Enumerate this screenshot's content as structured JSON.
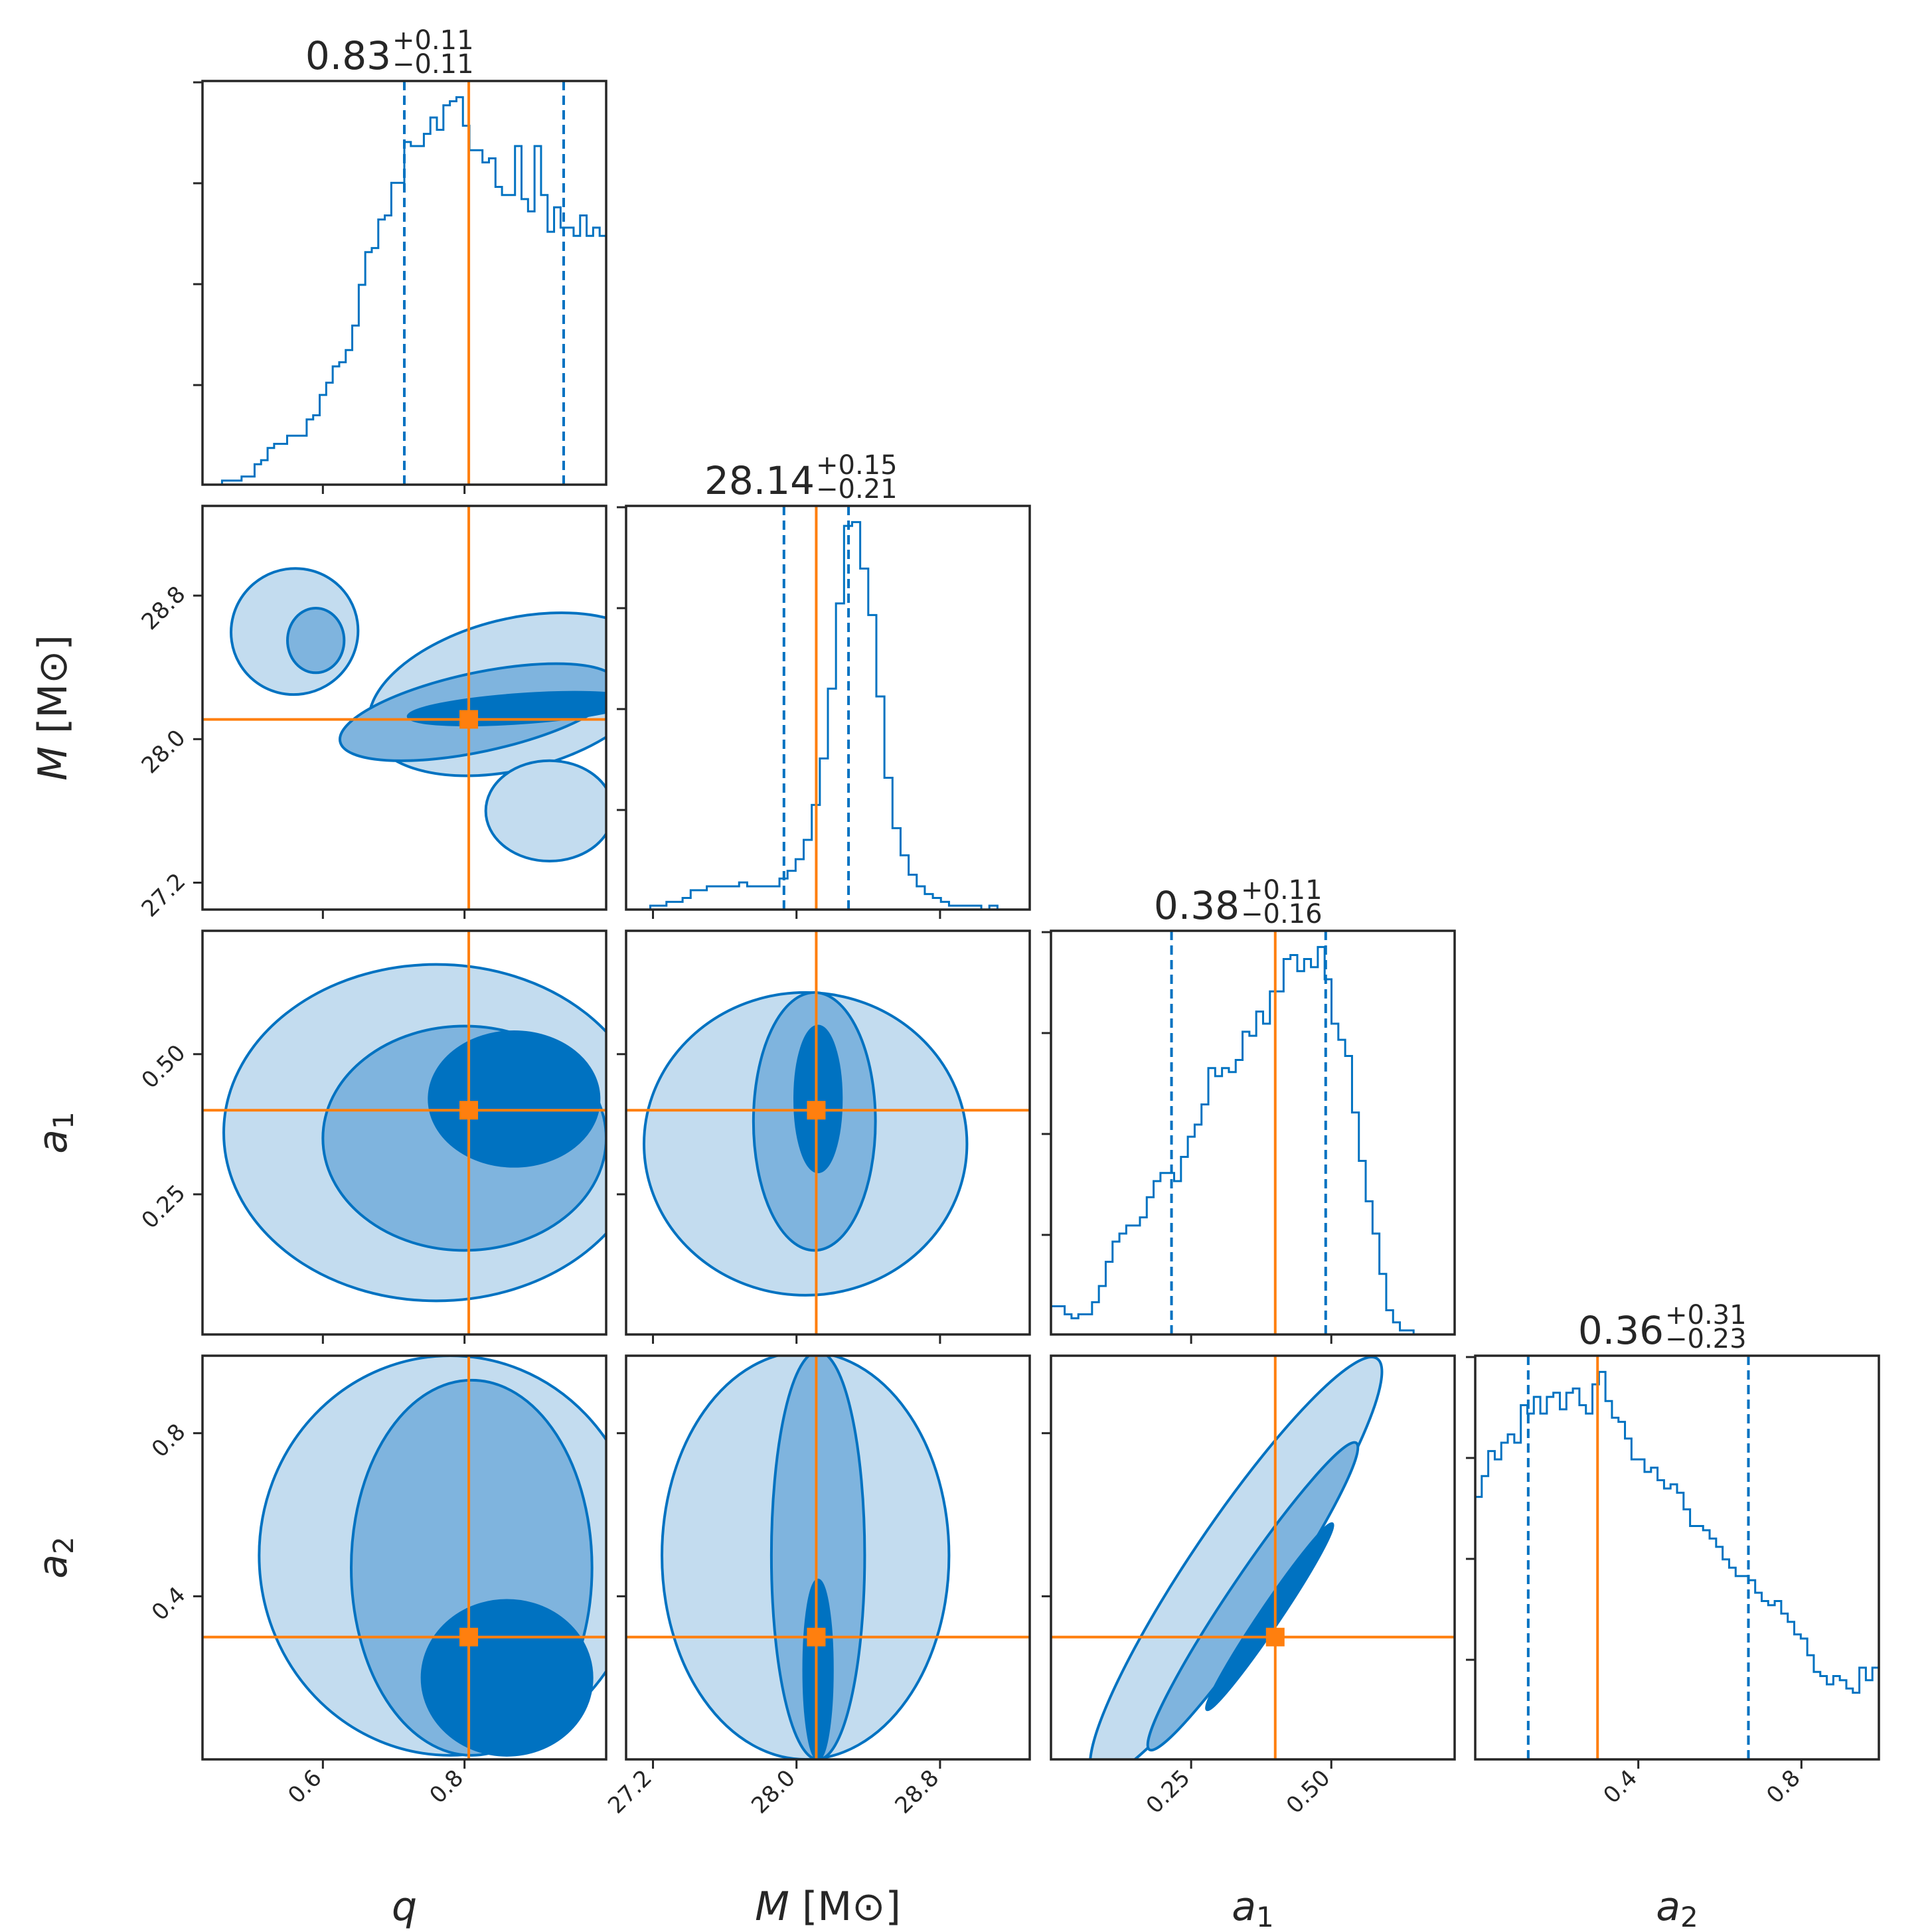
{
  "colors": {
    "contour_line": "#0072c1",
    "fill_light": "#c3dcef",
    "fill_mid": "#7fb4de",
    "fill_dark": "#0072c1",
    "truth": "#ff7f0e",
    "axes": "#262626"
  },
  "chart_data": {
    "type": "corner",
    "parameters": [
      {
        "key": "q",
        "label": "q",
        "label_main": "q",
        "label_sub": "",
        "label_suffix": "",
        "range": [
          0.43,
          1.0
        ],
        "ticks": [
          0.6,
          0.8
        ],
        "tick_labels": [
          "0.6",
          "0.8"
        ],
        "truth": 0.806
      },
      {
        "key": "M",
        "label": "M [M⊙]",
        "label_main": "M",
        "label_sub": "",
        "label_suffix": " [M⊙]",
        "range": [
          27.05,
          29.3
        ],
        "ticks": [
          27.2,
          28.0,
          28.8
        ],
        "tick_labels": [
          "27.2",
          "28.0",
          "28.8"
        ],
        "truth": 28.11
      },
      {
        "key": "a1",
        "label": "a1",
        "label_main": "a",
        "label_sub": "1",
        "label_suffix": "",
        "range": [
          0.0,
          0.72
        ],
        "ticks": [
          0.25,
          0.5
        ],
        "tick_labels": [
          "0.25",
          "0.50"
        ],
        "truth": 0.4
      },
      {
        "key": "a2",
        "label": "a2",
        "label_main": "a",
        "label_sub": "2",
        "label_suffix": "",
        "range": [
          0.0,
          0.99
        ],
        "ticks": [
          0.4,
          0.8
        ],
        "tick_labels": [
          "0.4",
          "0.8"
        ],
        "truth": 0.3
      }
    ],
    "titles": [
      {
        "median": "0.83",
        "plus": "+0.11",
        "minus": "−0.11"
      },
      {
        "median": "28.14",
        "plus": "+0.15",
        "minus": "−0.21"
      },
      {
        "median": "0.38",
        "plus": "+0.11",
        "minus": "−0.16"
      },
      {
        "median": "0.36",
        "plus": "+0.31",
        "minus": "−0.23"
      }
    ],
    "quantiles": [
      [
        0.715,
        0.94
      ],
      [
        27.93,
        28.29
      ],
      [
        0.215,
        0.49
      ],
      [
        0.13,
        0.67
      ]
    ],
    "histograms": [
      {
        "values": [
          0,
          0,
          0,
          0.01,
          0.01,
          0.01,
          0.02,
          0.02,
          0.05,
          0.06,
          0.09,
          0.1,
          0.1,
          0.12,
          0.12,
          0.12,
          0.16,
          0.17,
          0.22,
          0.25,
          0.29,
          0.3,
          0.33,
          0.39,
          0.49,
          0.57,
          0.58,
          0.65,
          0.66,
          0.74,
          0.74,
          0.84,
          0.83,
          0.83,
          0.86,
          0.9,
          0.87,
          0.93,
          0.94,
          0.95,
          0.88,
          0.82,
          0.82,
          0.79,
          0.8,
          0.73,
          0.71,
          0.71,
          0.83,
          0.7,
          0.67,
          0.83,
          0.71,
          0.62,
          0.68,
          0.63,
          0.63,
          0.61,
          0.66,
          0.61,
          0.63,
          0.61
        ]
      },
      {
        "values": [
          0,
          0,
          0,
          0.01,
          0.01,
          0.02,
          0.02,
          0.03,
          0.05,
          0.05,
          0.06,
          0.06,
          0.06,
          0.06,
          0.07,
          0.06,
          0.06,
          0.06,
          0.06,
          0.08,
          0.1,
          0.13,
          0.18,
          0.27,
          0.39,
          0.57,
          0.79,
          0.99,
          1.0,
          0.88,
          0.76,
          0.55,
          0.34,
          0.21,
          0.14,
          0.09,
          0.06,
          0.04,
          0.03,
          0.02,
          0.01,
          0.01,
          0.01,
          0.01,
          0.0,
          0.01,
          0.0,
          0.0,
          0.0,
          0.0
        ]
      },
      {
        "values": [
          0.07,
          0.07,
          0.05,
          0.04,
          0.05,
          0.05,
          0.08,
          0.12,
          0.18,
          0.23,
          0.25,
          0.27,
          0.27,
          0.29,
          0.34,
          0.38,
          0.4,
          0.4,
          0.38,
          0.44,
          0.49,
          0.52,
          0.57,
          0.66,
          0.64,
          0.66,
          0.65,
          0.68,
          0.75,
          0.74,
          0.8,
          0.77,
          0.85,
          0.85,
          0.93,
          0.94,
          0.9,
          0.93,
          0.91,
          0.96,
          0.88,
          0.77,
          0.73,
          0.69,
          0.55,
          0.43,
          0.33,
          0.25,
          0.15,
          0.06,
          0.03,
          0.01,
          0.01,
          0.0,
          0.0,
          0.0,
          0.0,
          0.0,
          0.0
        ]
      },
      {
        "values": [
          0.63,
          0.68,
          0.74,
          0.72,
          0.76,
          0.78,
          0.76,
          0.85,
          0.83,
          0.87,
          0.83,
          0.87,
          0.88,
          0.84,
          0.88,
          0.89,
          0.85,
          0.83,
          0.9,
          0.93,
          0.86,
          0.82,
          0.81,
          0.77,
          0.72,
          0.72,
          0.69,
          0.7,
          0.67,
          0.65,
          0.66,
          0.64,
          0.6,
          0.56,
          0.56,
          0.55,
          0.53,
          0.51,
          0.48,
          0.46,
          0.44,
          0.44,
          0.43,
          0.4,
          0.38,
          0.37,
          0.38,
          0.35,
          0.33,
          0.3,
          0.29,
          0.25,
          0.21,
          0.2,
          0.18,
          0.2,
          0.19,
          0.17,
          0.16,
          0.22,
          0.19,
          0.22
        ]
      }
    ],
    "hist2d": [
      {
        "x": "q",
        "y": "M",
        "ellipses": [
          {
            "level": 1,
            "cx": 0.87,
            "cy": 28.25,
            "rx": 0.21,
            "ry": 0.42,
            "angle": 14
          },
          {
            "level": 1,
            "cx": 0.56,
            "cy": 28.6,
            "rx": 0.09,
            "ry": 0.35,
            "angle": 30
          },
          {
            "level": 1,
            "cx": 0.92,
            "cy": 27.6,
            "rx": 0.09,
            "ry": 0.28,
            "angle": 0
          },
          {
            "level": 2,
            "cx": 0.82,
            "cy": 28.15,
            "rx": 0.2,
            "ry": 0.22,
            "angle": 12
          },
          {
            "level": 2,
            "cx": 0.59,
            "cy": 28.55,
            "rx": 0.04,
            "ry": 0.18,
            "angle": 0
          },
          {
            "level": 3,
            "cx": 0.88,
            "cy": 28.17,
            "rx": 0.16,
            "ry": 0.08,
            "angle": 4
          }
        ]
      },
      {
        "x": "q",
        "y": "a1",
        "ellipses": [
          {
            "level": 1,
            "cx": 0.76,
            "cy": 0.36,
            "rx": 0.3,
            "ry": 0.3,
            "angle": 0
          },
          {
            "level": 2,
            "cx": 0.8,
            "cy": 0.35,
            "rx": 0.2,
            "ry": 0.2,
            "angle": 0
          },
          {
            "level": 3,
            "cx": 0.87,
            "cy": 0.42,
            "rx": 0.12,
            "ry": 0.12,
            "angle": 0
          }
        ]
      },
      {
        "x": "M",
        "y": "a1",
        "ellipses": [
          {
            "level": 1,
            "cx": 28.05,
            "cy": 0.34,
            "rx": 0.9,
            "ry": 0.27,
            "angle": 0
          },
          {
            "level": 2,
            "cx": 28.1,
            "cy": 0.38,
            "rx": 0.34,
            "ry": 0.23,
            "angle": 0
          },
          {
            "level": 3,
            "cx": 28.12,
            "cy": 0.42,
            "rx": 0.13,
            "ry": 0.13,
            "angle": 0
          }
        ]
      },
      {
        "x": "q",
        "y": "a2",
        "ellipses": [
          {
            "level": 1,
            "cx": 0.78,
            "cy": 0.5,
            "rx": 0.27,
            "ry": 0.49,
            "angle": 0
          },
          {
            "level": 2,
            "cx": 0.81,
            "cy": 0.47,
            "rx": 0.17,
            "ry": 0.46,
            "angle": 0
          },
          {
            "level": 3,
            "cx": 0.86,
            "cy": 0.2,
            "rx": 0.12,
            "ry": 0.19,
            "angle": 0
          }
        ]
      },
      {
        "x": "M",
        "y": "a2",
        "ellipses": [
          {
            "level": 1,
            "cx": 28.05,
            "cy": 0.5,
            "rx": 0.8,
            "ry": 0.5,
            "angle": 0
          },
          {
            "level": 2,
            "cx": 28.12,
            "cy": 0.5,
            "rx": 0.26,
            "ry": 0.5,
            "angle": 0
          },
          {
            "level": 3,
            "cx": 28.12,
            "cy": 0.22,
            "rx": 0.08,
            "ry": 0.22,
            "angle": 0
          }
        ]
      },
      {
        "x": "a1",
        "y": "a2",
        "ellipses": [
          {
            "level": 1,
            "cx": 0.33,
            "cy": 0.47,
            "rx": 0.45,
            "ry": 0.11,
            "angle": 56
          },
          {
            "level": 2,
            "cx": 0.36,
            "cy": 0.4,
            "rx": 0.33,
            "ry": 0.055,
            "angle": 56
          },
          {
            "level": 3,
            "cx": 0.39,
            "cy": 0.35,
            "rx": 0.2,
            "ry": 0.025,
            "angle": 56
          }
        ]
      }
    ],
    "grid": false,
    "legend": "none"
  }
}
